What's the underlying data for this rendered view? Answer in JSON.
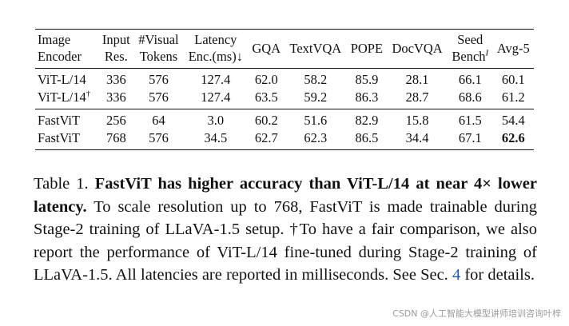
{
  "table": {
    "headers": {
      "encoder": [
        "Image",
        "Encoder"
      ],
      "res": [
        "Input",
        "Res."
      ],
      "tokens": [
        "#Visual",
        "Tokens"
      ],
      "latency": [
        "Latency",
        "Enc.(ms)↓"
      ],
      "gqa": "GQA",
      "textvqa": "TextVQA",
      "pope": "POPE",
      "docvqa": "DocVQA",
      "seed": [
        "Seed",
        "Bench",
        "I"
      ],
      "avg": "Avg-5"
    },
    "groups": [
      [
        {
          "encoder": "ViT-L/14",
          "dagger": "",
          "res": "336",
          "tokens": "576",
          "latency": "127.4",
          "gqa": "62.0",
          "textvqa": "58.2",
          "pope": "85.9",
          "docvqa": "28.1",
          "seed": "66.1",
          "avg": "60.1"
        },
        {
          "encoder": "ViT-L/14",
          "dagger": "†",
          "res": "336",
          "tokens": "576",
          "latency": "127.4",
          "gqa": "63.5",
          "textvqa": "59.2",
          "pope": "86.3",
          "docvqa": "28.7",
          "seed": "68.6",
          "avg": "61.2"
        }
      ],
      [
        {
          "encoder": "FastViT",
          "dagger": "",
          "res": "256",
          "tokens": "64",
          "latency": "3.0",
          "gqa": "60.2",
          "textvqa": "51.6",
          "pope": "82.9",
          "docvqa": "15.8",
          "seed": "61.5",
          "avg": "54.4"
        },
        {
          "encoder": "FastViT",
          "dagger": "",
          "res": "768",
          "tokens": "576",
          "latency": "34.5",
          "gqa": "62.7",
          "textvqa": "62.3",
          "pope": "86.5",
          "docvqa": "34.4",
          "seed": "67.1",
          "avg": "62.6"
        }
      ]
    ]
  },
  "caption": {
    "label": "Table 1.",
    "bold": "FastViT has higher accuracy than ViT-L/14 at near 4× lower latency.",
    "text1": "To scale resolution up to 768, FastViT is made trainable during Stage-2 training of LLaVA-1.5 setup. †To have a fair comparison, we also report the performance of ViT-L/14 fine-tuned during Stage-2 training of LLaVA-1.5. All latencies are reported in milliseconds. See Sec.",
    "ref": "4",
    "text2": "for details."
  },
  "watermark": "CSDN @人工智能大模型讲师培训咨询叶梓"
}
